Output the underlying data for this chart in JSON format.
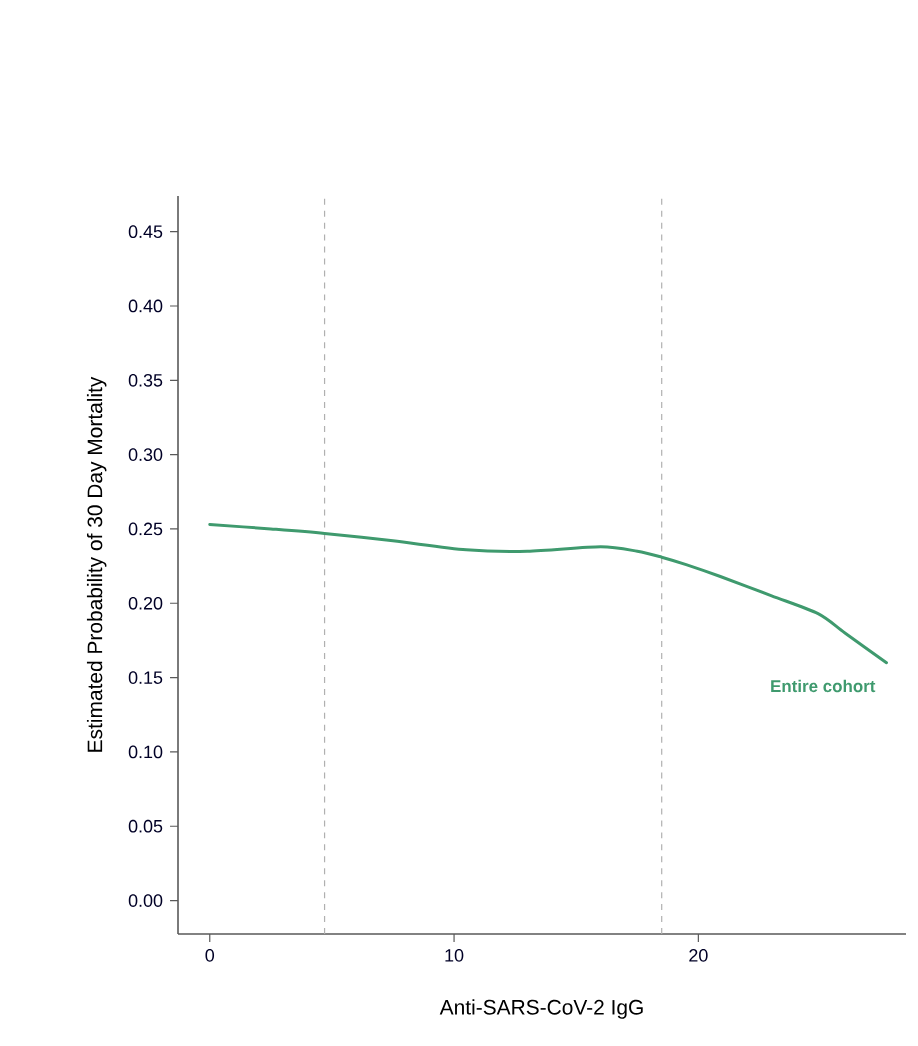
{
  "chart_data": {
    "type": "line",
    "xlabel": "Anti-SARS-CoV-2 IgG",
    "ylabel": "Estimated Probability of 30 Day Mortality",
    "xlim": [
      -1.3,
      28.5
    ],
    "ylim": [
      -0.0225,
      0.474
    ],
    "xticks": [
      0,
      10,
      20
    ],
    "yticks": [
      {
        "value": 0,
        "label": "0.00"
      },
      {
        "value": 0.05,
        "label": "0.05"
      },
      {
        "value": 0.1,
        "label": "0.10"
      },
      {
        "value": 0.15,
        "label": "0.15"
      },
      {
        "value": 0.2,
        "label": "0.20"
      },
      {
        "value": 0.25,
        "label": "0.25"
      },
      {
        "value": 0.3,
        "label": "0.30"
      },
      {
        "value": 0.35,
        "label": "0.35"
      },
      {
        "value": 0.4,
        "label": "0.40"
      },
      {
        "value": 0.45,
        "label": "0.45"
      }
    ],
    "grid": false,
    "legend": false,
    "marker": "none",
    "line_style": "solid",
    "ref_lines": [
      {
        "axis": "x",
        "value": 4.7,
        "color": "#b0b0b0",
        "line_style": "dashed"
      },
      {
        "axis": "x",
        "value": 18.5,
        "color": "#b0b0b0",
        "line_style": "dashed"
      }
    ],
    "series": [
      {
        "name": "Entire cohort",
        "color": "#3f9a6e",
        "x": [
          0,
          2.5,
          4.7,
          7.5,
          10.5,
          13,
          16,
          17.5,
          18.5,
          19.5,
          20.9,
          23,
          24.9,
          26,
          27.7
        ],
        "values": [
          0.253,
          0.25,
          0.247,
          0.242,
          0.236,
          0.235,
          0.238,
          0.235,
          0.231,
          0.226,
          0.218,
          0.205,
          0.193,
          0.18,
          0.16
        ]
      }
    ]
  }
}
